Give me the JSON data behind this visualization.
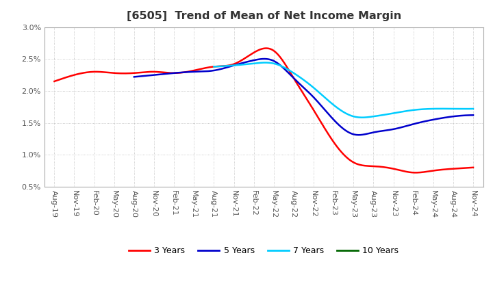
{
  "title": "[6505]  Trend of Mean of Net Income Margin",
  "ylim": [
    0.005,
    0.03
  ],
  "yticks": [
    0.005,
    0.01,
    0.015,
    0.02,
    0.025,
    0.03
  ],
  "ytick_labels": [
    "0.5%",
    "1.0%",
    "1.5%",
    "2.0%",
    "2.5%",
    "3.0%"
  ],
  "x_labels": [
    "Aug-19",
    "Nov-19",
    "Feb-20",
    "May-20",
    "Aug-20",
    "Nov-20",
    "Feb-21",
    "May-21",
    "Aug-21",
    "Nov-21",
    "Feb-22",
    "May-22",
    "Aug-22",
    "Nov-22",
    "Feb-23",
    "May-23",
    "Aug-23",
    "Nov-23",
    "Feb-24",
    "May-24",
    "Aug-24",
    "Nov-24"
  ],
  "series": {
    "3 Years": {
      "color": "#ff0000",
      "values": [
        0.0215,
        0.0225,
        0.023,
        0.0228,
        0.0228,
        0.023,
        0.0228,
        0.0232,
        0.0238,
        0.0242,
        0.026,
        0.0263,
        0.022,
        0.017,
        0.012,
        0.0088,
        0.0082,
        0.0078,
        0.0072,
        0.0075,
        0.0078,
        0.008
      ]
    },
    "5 Years": {
      "color": "#0000cc",
      "values": [
        null,
        null,
        null,
        null,
        0.0222,
        0.0225,
        0.0228,
        0.023,
        0.0232,
        0.024,
        0.0248,
        0.0247,
        0.022,
        0.019,
        0.0155,
        0.0132,
        0.0135,
        0.014,
        0.0148,
        0.0155,
        0.016,
        0.0162
      ]
    },
    "7 Years": {
      "color": "#00ccff",
      "values": [
        null,
        null,
        null,
        null,
        null,
        null,
        null,
        null,
        0.0238,
        0.024,
        0.0243,
        0.0243,
        0.0228,
        0.0205,
        0.0178,
        0.016,
        0.016,
        0.0165,
        0.017,
        0.0172,
        0.0172,
        0.0172
      ]
    },
    "10 Years": {
      "color": "#006600",
      "values": [
        null,
        null,
        null,
        null,
        null,
        null,
        null,
        null,
        null,
        null,
        null,
        null,
        null,
        null,
        null,
        null,
        null,
        null,
        null,
        null,
        null,
        null
      ]
    }
  },
  "legend_order": [
    "3 Years",
    "5 Years",
    "7 Years",
    "10 Years"
  ],
  "background_color": "#ffffff",
  "grid_color": "#bbbbbb",
  "title_fontsize": 11.5,
  "tick_fontsize": 8,
  "legend_fontsize": 9
}
